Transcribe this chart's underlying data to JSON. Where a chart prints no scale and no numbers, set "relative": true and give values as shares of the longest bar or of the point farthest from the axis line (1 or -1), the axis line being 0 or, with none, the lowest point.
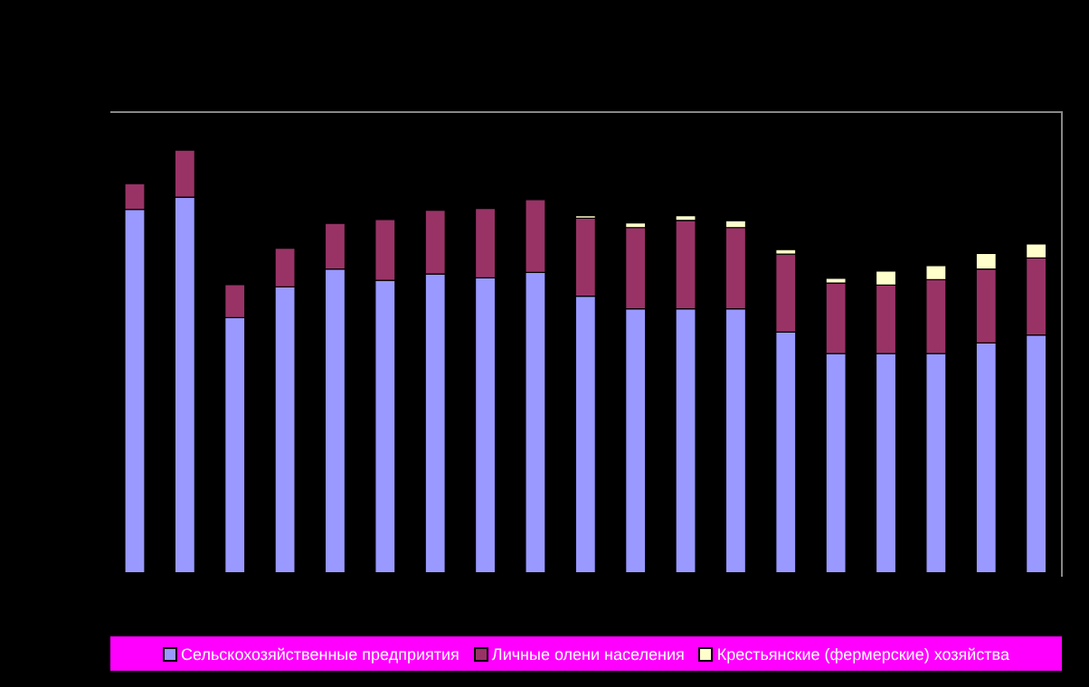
{
  "chart_data": {
    "type": "bar",
    "stacked": true,
    "relative": true,
    "legend": "bottom",
    "categories": [
      null,
      null,
      null,
      null,
      null,
      null,
      null,
      null,
      null,
      null,
      null,
      null,
      null,
      null,
      null,
      null,
      null,
      null,
      null
    ],
    "series": [
      {
        "name": "Сельскохозяйственные предприятия",
        "color": "#9999ff",
        "values": [
          0.86,
          0.889,
          0.604,
          0.677,
          0.719,
          0.692,
          0.707,
          0.698,
          0.711,
          0.655,
          0.625,
          0.625,
          0.625,
          0.57,
          0.519,
          0.519,
          0.519,
          0.544,
          0.563
        ]
      },
      {
        "name": "Личные олени населения",
        "color": "#993366",
        "values": [
          0.061,
          0.111,
          0.078,
          0.091,
          0.108,
          0.144,
          0.151,
          0.164,
          0.172,
          0.184,
          0.192,
          0.209,
          0.192,
          0.184,
          0.167,
          0.162,
          0.175,
          0.175,
          0.182
        ]
      },
      {
        "name": "Крестьянские (фермерские) хозяйства",
        "color": "#ffffcc",
        "values": [
          null,
          null,
          null,
          null,
          null,
          null,
          null,
          null,
          null,
          0.006,
          0.011,
          0.011,
          0.016,
          0.011,
          0.011,
          0.033,
          0.033,
          0.037,
          0.033
        ]
      }
    ]
  }
}
